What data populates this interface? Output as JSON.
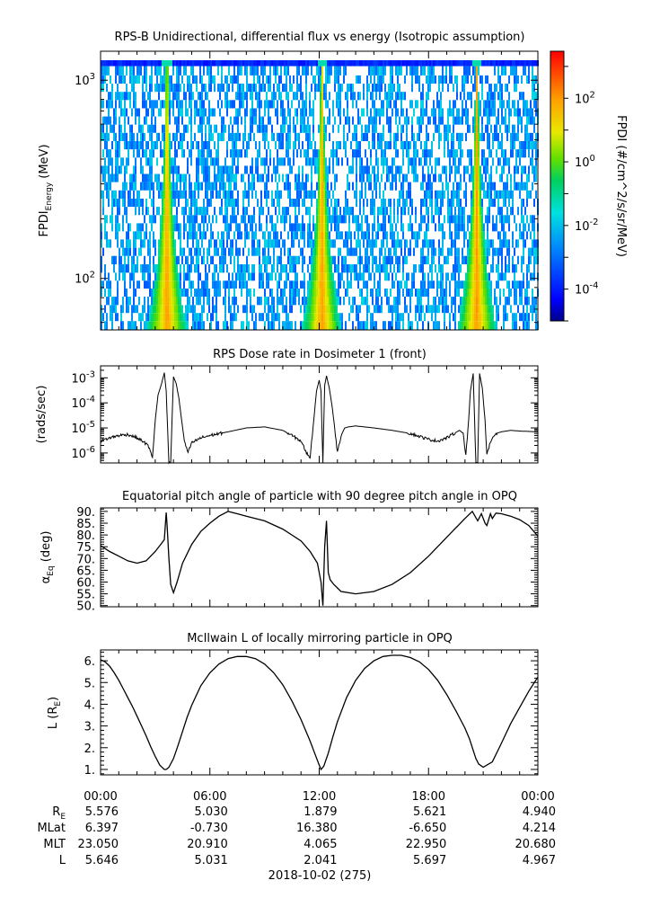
{
  "chart_data": [
    {
      "type": "heatmap",
      "title": "RPS-B  Unidirectional, differential flux vs energy (Isotropic assumption)",
      "ylabel_main": "FPDI",
      "ylabel_sub": "Energy",
      "ylabel_unit": " (MeV)",
      "ylim": [
        55,
        1400
      ],
      "yscale": "log",
      "yticks": [
        {
          "label": "10",
          "exp": "3",
          "value": 1000
        },
        {
          "label": "10",
          "exp": "2",
          "value": 100
        }
      ],
      "energy_channels": [
        58,
        64,
        70,
        77,
        85,
        93,
        102,
        112,
        124,
        136,
        150,
        165,
        181,
        199,
        219,
        241,
        265,
        292,
        321,
        353,
        388,
        427,
        470,
        517,
        569,
        626,
        688,
        757,
        833,
        916,
        1008,
        1109
      ],
      "top_channel_mev": 1250,
      "belt_crossings_hours": [
        3.6,
        12.1,
        20.6
      ],
      "colorbar": {
        "label": "FPDI (#/cm^2/s/sr/MeV)",
        "scale": "log",
        "range": [
          1e-05,
          3000
        ],
        "ticks": [
          {
            "label": "10",
            "exp": "2",
            "value": 100
          },
          {
            "label": "10",
            "exp": "0",
            "value": 1
          },
          {
            "label": "10",
            "exp": "-2",
            "value": 0.01
          },
          {
            "label": "10",
            "exp": "-4",
            "value": 0.0001
          }
        ]
      }
    },
    {
      "type": "line",
      "title": "RPS  Dose rate in Dosimeter 1 (front)",
      "ylabel": "(rads/sec)",
      "yscale": "log",
      "ylim": [
        4e-07,
        0.003
      ],
      "yticks": [
        {
          "label": "10",
          "exp": "-3",
          "value": 0.001
        },
        {
          "label": "10",
          "exp": "-4",
          "value": 0.0001
        },
        {
          "label": "10",
          "exp": "-5",
          "value": 1e-05
        },
        {
          "label": "10",
          "exp": "-6",
          "value": 1e-06
        }
      ],
      "x_hours": [
        0,
        0.5,
        1,
        1.5,
        2,
        2.3,
        2.6,
        2.85,
        3.0,
        3.15,
        3.35,
        3.5,
        3.6,
        3.75,
        3.85,
        4.0,
        4.15,
        4.3,
        4.45,
        4.6,
        4.8,
        5.0,
        5.5,
        6,
        7,
        8,
        9,
        10,
        10.5,
        11.0,
        11.3,
        11.5,
        11.7,
        11.85,
        12.0,
        12.1,
        12.2,
        12.3,
        12.4,
        12.55,
        12.7,
        12.85,
        13.0,
        13.2,
        13.4,
        13.6,
        14,
        15,
        16,
        17,
        18,
        18.5,
        19.0,
        19.4,
        19.7,
        19.9,
        20.05,
        20.2,
        20.3,
        20.45,
        20.6,
        20.7,
        20.8,
        20.95,
        21.1,
        21.2,
        21.35,
        21.5,
        21.7,
        22,
        22.5,
        23,
        24
      ],
      "values": [
        3e-06,
        4e-06,
        5e-06,
        5.5e-06,
        4e-06,
        3e-06,
        2e-06,
        7e-07,
        2e-05,
        0.0002,
        0.0006,
        0.0016,
        0.0003,
        4e-07,
        4e-07,
        0.0011,
        0.0006,
        0.00015,
        2e-05,
        3e-06,
        1e-06,
        2.5e-06,
        4e-06,
        5e-06,
        7e-06,
        1e-05,
        1.1e-05,
        8e-06,
        5e-06,
        3e-06,
        1e-06,
        7e-07,
        2e-05,
        0.0003,
        0.0008,
        0.0003,
        4e-07,
        0.0005,
        0.0012,
        0.0004,
        8e-05,
        1e-05,
        1e-06,
        5e-06,
        1e-05,
        1.1e-05,
        1.2e-05,
        1e-05,
        8e-06,
        6e-06,
        3.5e-06,
        3e-06,
        4e-06,
        6e-06,
        8e-06,
        6e-06,
        8e-07,
        2e-05,
        0.0003,
        0.0015,
        4e-07,
        4e-07,
        0.0015,
        0.0004,
        2e-05,
        8e-07,
        2e-06,
        4e-06,
        6e-06,
        7e-06,
        8e-06,
        7.5e-06,
        7e-06
      ]
    },
    {
      "type": "line",
      "title": "Equatorial pitch angle of particle with 90 degree pitch angle in OPQ",
      "ylabel_main": "α",
      "ylabel_sub": "Eq",
      "ylabel_unit": " (deg)",
      "ylim": [
        49.5,
        91.5
      ],
      "yticks": [
        90,
        85,
        80,
        75,
        70,
        65,
        60,
        55,
        50
      ],
      "ytick_labels": [
        "90.",
        "85.",
        "80.",
        "75.",
        "70.",
        "65.",
        "60.",
        "55.",
        "50."
      ],
      "x_hours": [
        0,
        0.5,
        1,
        1.5,
        2,
        2.5,
        3.0,
        3.3,
        3.5,
        3.6,
        3.65,
        3.75,
        3.85,
        4.0,
        4.2,
        4.5,
        5,
        5.5,
        6,
        6.5,
        7.0,
        7.5,
        8,
        9,
        10,
        11,
        11.5,
        11.9,
        12.1,
        12.2,
        12.3,
        12.4,
        12.5,
        12.6,
        12.8,
        13.2,
        14,
        15,
        16,
        17,
        18,
        19,
        20.0,
        20.4,
        20.7,
        20.9,
        21.1,
        21.2,
        21.4,
        21.5,
        21.7,
        22,
        22.5,
        23,
        23.5,
        24
      ],
      "values": [
        75.5,
        73,
        71,
        69,
        68,
        69,
        73,
        76,
        78,
        89.5,
        84,
        70,
        59,
        55.5,
        60,
        68,
        76,
        81.5,
        85,
        88,
        90,
        89,
        88,
        86,
        82.5,
        77.5,
        73,
        68,
        60,
        50,
        75,
        86,
        64,
        61,
        59,
        56,
        55,
        56,
        59,
        64,
        71,
        79,
        87,
        90,
        86,
        89,
        85,
        84,
        89,
        87,
        89.3,
        89,
        88,
        86.5,
        84,
        79.5
      ]
    },
    {
      "type": "line",
      "title": "McIlwain L of locally mirroring particle in OPQ",
      "ylabel_main": "L (R",
      "ylabel_sub": "E",
      "ylabel_unit": ")",
      "ylim": [
        0.75,
        6.5
      ],
      "yticks": [
        6.0,
        5.0,
        4.0,
        3.0,
        2.0,
        1.0
      ],
      "ytick_labels": [
        "6.",
        "5.",
        "4.",
        "3.",
        "2.",
        "1."
      ],
      "x_hours": [
        0,
        0.25,
        0.5,
        0.75,
        1,
        1.25,
        1.5,
        1.75,
        2,
        2.25,
        2.5,
        2.75,
        3.0,
        3.25,
        3.5,
        3.6,
        3.75,
        4.0,
        4.25,
        4.5,
        4.75,
        5,
        5.5,
        6,
        6.5,
        7,
        7.5,
        8,
        8.5,
        9,
        9.5,
        10,
        10.5,
        11,
        11.5,
        11.75,
        12,
        12.1,
        12.25,
        12.5,
        12.75,
        13,
        13.5,
        14,
        14.5,
        15,
        15.5,
        16,
        16.5,
        17,
        17.5,
        18,
        18.5,
        19,
        19.5,
        20,
        20.25,
        20.5,
        20.6,
        20.75,
        21,
        21.5,
        22,
        22.5,
        23,
        23.5,
        24
      ],
      "values": [
        6.05,
        5.95,
        5.75,
        5.45,
        5.1,
        4.7,
        4.3,
        3.9,
        3.45,
        3.0,
        2.55,
        2.05,
        1.6,
        1.2,
        1.0,
        1.0,
        1.1,
        1.5,
        2.1,
        2.75,
        3.4,
        3.95,
        4.85,
        5.45,
        5.85,
        6.1,
        6.2,
        6.2,
        6.1,
        5.85,
        5.45,
        4.9,
        4.15,
        3.3,
        2.3,
        1.75,
        1.2,
        1.0,
        1.15,
        1.75,
        2.5,
        3.2,
        4.3,
        5.1,
        5.65,
        6.0,
        6.2,
        6.25,
        6.25,
        6.15,
        5.95,
        5.6,
        5.1,
        4.45,
        3.7,
        2.9,
        2.4,
        1.75,
        1.5,
        1.25,
        1.1,
        1.35,
        2.2,
        3.1,
        3.85,
        4.6,
        5.25
      ]
    }
  ],
  "x_axis": {
    "ticks": [
      "00:00",
      "06:00",
      "12:00",
      "18:00",
      "00:00"
    ],
    "rows": [
      {
        "label": "R",
        "sub": "E",
        "values": [
          "5.576",
          "5.030",
          "1.879",
          "5.621",
          "4.940"
        ]
      },
      {
        "label": "MLat",
        "sub": "",
        "values": [
          "6.397",
          "-0.730",
          "16.380",
          "-6.650",
          "4.214"
        ]
      },
      {
        "label": "MLT",
        "sub": "",
        "values": [
          "23.050",
          "20.910",
          "4.065",
          "22.950",
          "20.680"
        ]
      },
      {
        "label": "L",
        "sub": "",
        "values": [
          "5.646",
          "5.031",
          "2.041",
          "5.697",
          "4.967"
        ]
      }
    ],
    "date_label": "2018-10-02 (275)"
  }
}
